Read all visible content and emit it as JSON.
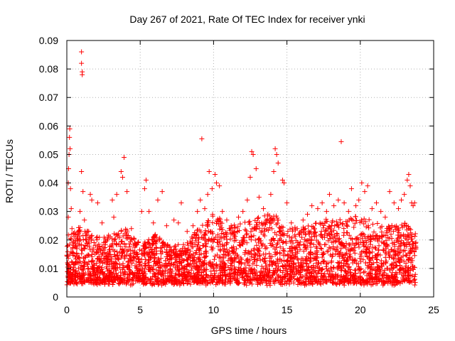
{
  "chart_data": {
    "type": "scatter",
    "title": "Day 267 of 2021, Rate Of TEC Index for receiver ynki",
    "xlabel": "GPS time / hours",
    "ylabel": "ROTI / TECUs",
    "xlim": [
      0,
      25
    ],
    "ylim": [
      0,
      0.09
    ],
    "xticks": [
      "0",
      "5",
      "10",
      "15",
      "20",
      "25"
    ],
    "yticks": [
      "0",
      "0.01",
      "0.02",
      "0.03",
      "0.04",
      "0.05",
      "0.06",
      "0.07",
      "0.08",
      "0.09"
    ],
    "grid": true,
    "marker": "+",
    "color": "#ff0000",
    "series": [
      {
        "points": [
          [
            0.05,
            0.012
          ],
          [
            0.1,
            0.028
          ],
          [
            0.1,
            0.04
          ],
          [
            0.12,
            0.045
          ],
          [
            0.15,
            0.05
          ],
          [
            0.18,
            0.056
          ],
          [
            0.2,
            0.059
          ],
          [
            0.22,
            0.052
          ],
          [
            0.25,
            0.038
          ],
          [
            0.3,
            0.031
          ],
          [
            0.35,
            0.024
          ],
          [
            0.4,
            0.019
          ],
          [
            1.0,
            0.086
          ],
          [
            1.0,
            0.082
          ],
          [
            1.05,
            0.079
          ],
          [
            1.05,
            0.078
          ],
          [
            1.0,
            0.044
          ],
          [
            1.1,
            0.037
          ],
          [
            0.9,
            0.03
          ],
          [
            1.2,
            0.027
          ],
          [
            1.6,
            0.036
          ],
          [
            1.7,
            0.034
          ],
          [
            2.1,
            0.033
          ],
          [
            2.4,
            0.026
          ],
          [
            2.8,
            0.021
          ],
          [
            3.1,
            0.034
          ],
          [
            3.2,
            0.028
          ],
          [
            3.4,
            0.036
          ],
          [
            3.7,
            0.044
          ],
          [
            3.8,
            0.042
          ],
          [
            3.9,
            0.049
          ],
          [
            4.1,
            0.037
          ],
          [
            4.4,
            0.024
          ],
          [
            4.7,
            0.018
          ],
          [
            5.1,
            0.03
          ],
          [
            5.3,
            0.038
          ],
          [
            5.4,
            0.041
          ],
          [
            5.6,
            0.03
          ],
          [
            5.9,
            0.026
          ],
          [
            6.2,
            0.034
          ],
          [
            6.5,
            0.037
          ],
          [
            6.8,
            0.025
          ],
          [
            7.3,
            0.027
          ],
          [
            7.6,
            0.026
          ],
          [
            7.8,
            0.033
          ],
          [
            8.2,
            0.023
          ],
          [
            8.6,
            0.025
          ],
          [
            8.9,
            0.03
          ],
          [
            9.1,
            0.034
          ],
          [
            9.2,
            0.0555
          ],
          [
            9.4,
            0.031
          ],
          [
            9.6,
            0.036
          ],
          [
            9.7,
            0.044
          ],
          [
            9.9,
            0.038
          ],
          [
            10.1,
            0.043
          ],
          [
            10.2,
            0.04
          ],
          [
            10.4,
            0.039
          ],
          [
            10.6,
            0.03
          ],
          [
            10.9,
            0.027
          ],
          [
            11.2,
            0.025
          ],
          [
            11.7,
            0.028
          ],
          [
            12.0,
            0.03
          ],
          [
            12.3,
            0.034
          ],
          [
            12.5,
            0.042
          ],
          [
            12.6,
            0.051
          ],
          [
            12.7,
            0.05
          ],
          [
            12.9,
            0.045
          ],
          [
            13.1,
            0.035
          ],
          [
            13.4,
            0.031
          ],
          [
            13.7,
            0.029
          ],
          [
            13.9,
            0.036
          ],
          [
            14.1,
            0.044
          ],
          [
            14.2,
            0.052
          ],
          [
            14.3,
            0.05
          ],
          [
            14.4,
            0.047
          ],
          [
            14.7,
            0.041
          ],
          [
            14.8,
            0.04
          ],
          [
            15.0,
            0.033
          ],
          [
            15.3,
            0.026
          ],
          [
            15.7,
            0.024
          ],
          [
            16.1,
            0.027
          ],
          [
            16.4,
            0.029
          ],
          [
            16.7,
            0.032
          ],
          [
            17.1,
            0.031
          ],
          [
            17.4,
            0.033
          ],
          [
            17.7,
            0.03
          ],
          [
            17.9,
            0.036
          ],
          [
            18.2,
            0.032
          ],
          [
            18.5,
            0.034
          ],
          [
            18.7,
            0.0545
          ],
          [
            18.9,
            0.033
          ],
          [
            19.2,
            0.03
          ],
          [
            19.4,
            0.038
          ],
          [
            19.7,
            0.032
          ],
          [
            19.9,
            0.034
          ],
          [
            20.1,
            0.04
          ],
          [
            20.3,
            0.037
          ],
          [
            20.5,
            0.039
          ],
          [
            20.8,
            0.031
          ],
          [
            21.1,
            0.033
          ],
          [
            21.4,
            0.03
          ],
          [
            21.7,
            0.028
          ],
          [
            22.0,
            0.037
          ],
          [
            22.3,
            0.033
          ],
          [
            22.6,
            0.031
          ],
          [
            22.8,
            0.034
          ],
          [
            23.0,
            0.036
          ],
          [
            23.2,
            0.041
          ],
          [
            23.3,
            0.043
          ],
          [
            23.4,
            0.039
          ],
          [
            23.5,
            0.033
          ],
          [
            23.6,
            0.032
          ],
          [
            23.7,
            0.033
          ]
        ],
        "band": {
          "x_range": [
            0,
            23.8
          ],
          "y_center": 0.012,
          "y_spread": 0.008,
          "envelope": [
            [
              0,
              0.022
            ],
            [
              1,
              0.025
            ],
            [
              2,
              0.021
            ],
            [
              3,
              0.022
            ],
            [
              4,
              0.024
            ],
            [
              5,
              0.019
            ],
            [
              6,
              0.022
            ],
            [
              7,
              0.018
            ],
            [
              8,
              0.019
            ],
            [
              9,
              0.024
            ],
            [
              10,
              0.03
            ],
            [
              11,
              0.025
            ],
            [
              12,
              0.026
            ],
            [
              13,
              0.028
            ],
            [
              14,
              0.03
            ],
            [
              15,
              0.024
            ],
            [
              16,
              0.025
            ],
            [
              17,
              0.026
            ],
            [
              18,
              0.028
            ],
            [
              19,
              0.027
            ],
            [
              20,
              0.029
            ],
            [
              21,
              0.026
            ],
            [
              22,
              0.025
            ],
            [
              23,
              0.027
            ],
            [
              23.8,
              0.022
            ]
          ]
        }
      }
    ]
  }
}
